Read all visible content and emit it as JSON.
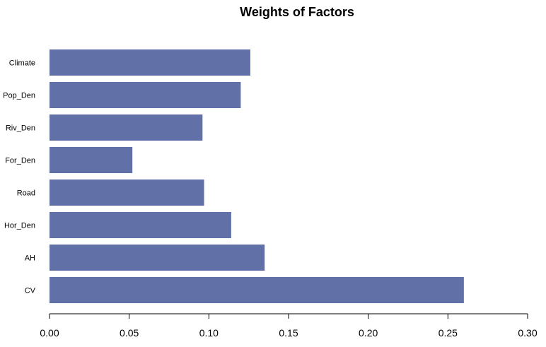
{
  "chart_data": {
    "type": "bar",
    "orientation": "horizontal",
    "title": "Weights of Factors",
    "xlabel": "",
    "ylabel": "",
    "categories": [
      "Climate",
      "Pop_Den",
      "Riv_Den",
      "For_Den",
      "Road",
      "Hor_Den",
      "AH",
      "CV"
    ],
    "values": [
      0.126,
      0.12,
      0.096,
      0.052,
      0.097,
      0.114,
      0.135,
      0.26
    ],
    "xlim": [
      0,
      0.3
    ],
    "xticks": [
      "0.00",
      "0.05",
      "0.10",
      "0.15",
      "0.20",
      "0.25",
      "0.30"
    ],
    "bar_color": "#6170a6",
    "grid": false,
    "legend": "none"
  }
}
